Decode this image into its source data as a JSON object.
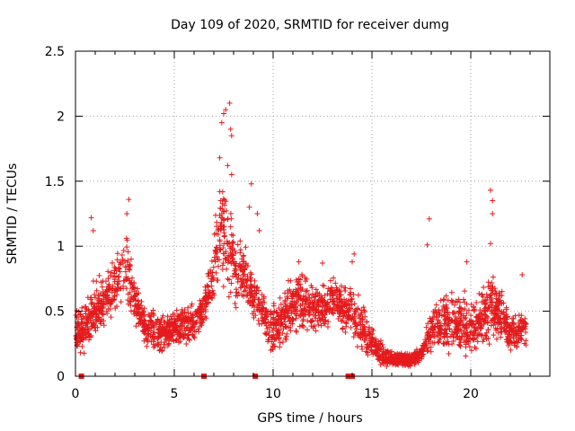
{
  "chart_data": {
    "type": "scatter",
    "title": "Day 109 of 2020, SRMTID for receiver dumg",
    "xlabel": "GPS time / hours",
    "ylabel": "SRMTID / TECUs",
    "xlim": [
      0,
      24
    ],
    "ylim": [
      0,
      2.5
    ],
    "xticks": [
      0,
      5,
      10,
      15,
      20
    ],
    "xtick_labels": [
      "0",
      "5",
      "10",
      "15",
      "20"
    ],
    "yticks": [
      0,
      0.5,
      1,
      1.5,
      2,
      2.5
    ],
    "ytick_labels": [
      "0",
      "0.5",
      "1",
      "1.5",
      "2",
      "2.5"
    ],
    "grid": true,
    "marker": "+",
    "series": [
      {
        "name": "SRMTID",
        "color": "#e41a1c",
        "envelope_x": [
          0,
          0.5,
          1,
          1.5,
          2,
          2.5,
          3,
          3.5,
          4,
          4.5,
          5,
          5.5,
          6,
          6.5,
          7,
          7.25,
          7.5,
          7.75,
          8,
          8.5,
          9,
          9.5,
          10,
          10.5,
          11,
          11.5,
          12,
          12.5,
          13,
          13.5,
          14,
          14.5,
          15,
          15.5,
          16,
          16.5,
          17,
          17.5,
          18,
          18.5,
          19,
          19.5,
          20,
          20.5,
          21,
          21.5,
          22,
          22.5,
          22.8
        ],
        "envelope_low": [
          0.1,
          0.15,
          0.2,
          0.3,
          0.4,
          0.45,
          0.35,
          0.2,
          0.15,
          0.15,
          0.2,
          0.2,
          0.2,
          0.35,
          0.5,
          0.6,
          0.6,
          0.5,
          0.5,
          0.5,
          0.4,
          0.3,
          0.1,
          0.2,
          0.25,
          0.3,
          0.3,
          0.3,
          0.35,
          0.3,
          0.2,
          0.15,
          0.1,
          0.05,
          0.05,
          0.05,
          0.05,
          0.1,
          0.15,
          0.1,
          0.1,
          0.1,
          0.1,
          0.15,
          0.2,
          0.2,
          0.15,
          0.2,
          0.2
        ],
        "envelope_high": [
          0.55,
          0.6,
          0.8,
          0.85,
          1.0,
          1.3,
          0.85,
          0.55,
          0.55,
          0.5,
          0.55,
          0.6,
          0.6,
          0.7,
          1.1,
          1.6,
          1.75,
          1.45,
          1.2,
          1.1,
          0.85,
          0.7,
          0.6,
          0.7,
          0.85,
          0.85,
          0.75,
          0.75,
          0.8,
          0.8,
          0.8,
          0.6,
          0.4,
          0.3,
          0.2,
          0.2,
          0.2,
          0.25,
          0.6,
          0.7,
          0.75,
          0.7,
          0.65,
          0.7,
          0.9,
          0.75,
          0.5,
          0.5,
          0.5
        ],
        "outliers": [
          {
            "x": 7.3,
            "y": 1.68
          },
          {
            "x": 7.4,
            "y": 1.95
          },
          {
            "x": 7.5,
            "y": 2.02
          },
          {
            "x": 7.6,
            "y": 2.05
          },
          {
            "x": 7.8,
            "y": 2.1
          },
          {
            "x": 7.85,
            "y": 1.9
          },
          {
            "x": 7.9,
            "y": 1.85
          },
          {
            "x": 7.7,
            "y": 1.62
          },
          {
            "x": 7.9,
            "y": 1.55
          },
          {
            "x": 7.3,
            "y": 1.42
          },
          {
            "x": 8.9,
            "y": 1.48
          },
          {
            "x": 8.8,
            "y": 1.3
          },
          {
            "x": 2.7,
            "y": 1.36
          },
          {
            "x": 2.6,
            "y": 1.25
          },
          {
            "x": 0.8,
            "y": 1.22
          },
          {
            "x": 0.9,
            "y": 1.12
          },
          {
            "x": 9.2,
            "y": 1.25
          },
          {
            "x": 9.3,
            "y": 1.12
          },
          {
            "x": 17.9,
            "y": 1.21
          },
          {
            "x": 17.8,
            "y": 1.01
          },
          {
            "x": 21.0,
            "y": 1.43
          },
          {
            "x": 21.1,
            "y": 1.35
          },
          {
            "x": 21.1,
            "y": 1.25
          },
          {
            "x": 21.0,
            "y": 1.02
          },
          {
            "x": 22.6,
            "y": 0.78
          },
          {
            "x": 14.1,
            "y": 0.94
          },
          {
            "x": 14.0,
            "y": 0.88
          },
          {
            "x": 19.8,
            "y": 0.88
          },
          {
            "x": 11.3,
            "y": 0.88
          },
          {
            "x": 12.5,
            "y": 0.87
          }
        ],
        "zero_markers": [
          0.3,
          6.5,
          9.1,
          13.8,
          13.9,
          14.0
        ]
      }
    ]
  }
}
